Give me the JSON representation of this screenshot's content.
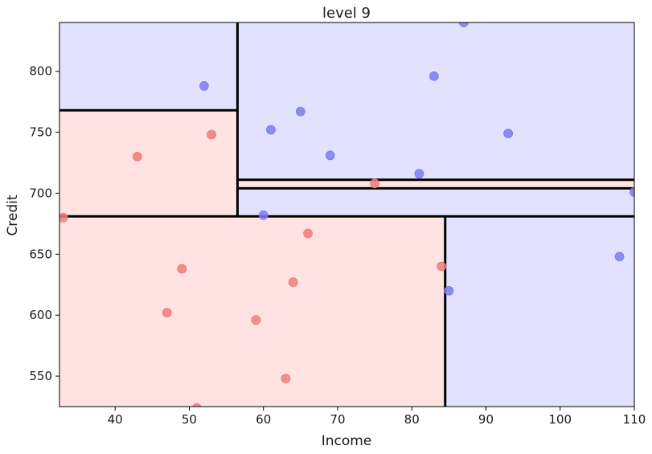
{
  "chart_data": {
    "type": "scatter",
    "title": "level 9",
    "xlabel": "Income",
    "ylabel": "Credit",
    "xlim": [
      32.5,
      110
    ],
    "ylim": [
      525,
      840
    ],
    "xticks": [
      40,
      50,
      60,
      70,
      80,
      90,
      100,
      110
    ],
    "yticks": [
      550,
      600,
      650,
      700,
      750,
      800
    ],
    "grid": false,
    "colors": {
      "blue_region": "#e2e2ff",
      "red_region": "#ffe2e2",
      "blue_point": "#7b7bf0",
      "red_point": "#f07b7b",
      "split_line": "#000000"
    },
    "regions": [
      {
        "class": "blue",
        "x": [
          32.5,
          56.5
        ],
        "y": [
          768,
          840
        ]
      },
      {
        "class": "red",
        "x": [
          32.5,
          56.5
        ],
        "y": [
          681,
          768
        ]
      },
      {
        "class": "blue",
        "x": [
          56.5,
          110
        ],
        "y": [
          711,
          840
        ]
      },
      {
        "class": "red",
        "x": [
          56.5,
          110
        ],
        "y": [
          704,
          711
        ]
      },
      {
        "class": "blue",
        "x": [
          56.5,
          110
        ],
        "y": [
          681,
          704
        ]
      },
      {
        "class": "red",
        "x": [
          32.5,
          84.5
        ],
        "y": [
          525,
          681
        ]
      },
      {
        "class": "blue",
        "x": [
          84.5,
          110
        ],
        "y": [
          525,
          681
        ]
      }
    ],
    "splits": [
      {
        "x": [
          32.5,
          110
        ],
        "y": [
          681,
          681
        ]
      },
      {
        "x": [
          56.5,
          56.5
        ],
        "y": [
          681,
          840
        ]
      },
      {
        "x": [
          32.5,
          56.5
        ],
        "y": [
          768,
          768
        ]
      },
      {
        "x": [
          56.5,
          110
        ],
        "y": [
          711,
          711
        ]
      },
      {
        "x": [
          56.5,
          110
        ],
        "y": [
          704,
          704
        ]
      },
      {
        "x": [
          84.5,
          84.5
        ],
        "y": [
          525,
          681
        ]
      }
    ],
    "series": [
      {
        "class": "blue",
        "points": [
          [
            52,
            788
          ],
          [
            61,
            752
          ],
          [
            65,
            767
          ],
          [
            69,
            731
          ],
          [
            83,
            796
          ],
          [
            87,
            840
          ],
          [
            93,
            749
          ],
          [
            81,
            716
          ],
          [
            60,
            682
          ],
          [
            110,
            701
          ],
          [
            108,
            648
          ],
          [
            85,
            620
          ]
        ]
      },
      {
        "class": "red",
        "points": [
          [
            33,
            680
          ],
          [
            43,
            730
          ],
          [
            53,
            748
          ],
          [
            75,
            708
          ],
          [
            66,
            667
          ],
          [
            49,
            638
          ],
          [
            64,
            627
          ],
          [
            47,
            602
          ],
          [
            59,
            596
          ],
          [
            63,
            548
          ],
          [
            51,
            524
          ],
          [
            84,
            640
          ]
        ]
      }
    ]
  }
}
